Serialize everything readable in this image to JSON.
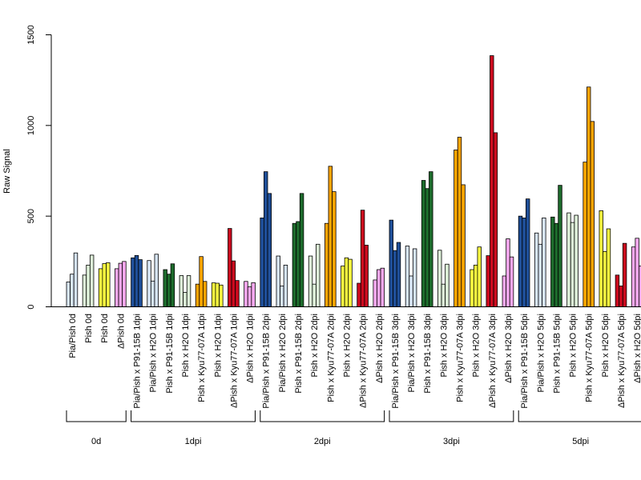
{
  "chart_data": {
    "type": "bar",
    "title": "",
    "xlabel": "",
    "ylabel": "Raw Signal",
    "ylim": [
      0,
      1500
    ],
    "yticks": [
      0,
      500,
      1000,
      1500
    ],
    "grid": false,
    "legend": "none",
    "categories": [
      "Pia/Pish 0d",
      "Pish 0d",
      "Pish 0d",
      "ΔPish 0d",
      "Pia/Pish x P91-15B 1dpi",
      "Pia/Pish x H2O 1dpi",
      "Pish x P91-15B 1dpi",
      "Pish x H2O 1dpi",
      "Pish x Kyu77-07A 1dpi",
      "Pish x H2O 1dpi",
      "ΔPish x Kyu77-07A 1dpi",
      "ΔPish x H2O 1dpi",
      "Pia/Pish x P91-15B 2dpi",
      "Pia/Pish x H2O 2dpi",
      "Pish x P91-15B 2dpi",
      "Pish x H2O 2dpi",
      "Pish x Kyu77-07A 2dpi",
      "Pish x H2O 2dpi",
      "ΔPish x Kyu77-07A 2dpi",
      "ΔPish x H2O 2dpi",
      "Pia/Pish x P91-15B 3dpi",
      "Pia/Pish x H2O 3dpi",
      "Pish x P91-15B 3dpi",
      "Pish x H2O 3dpi",
      "Pish x Kyu77-07A 3dpi",
      "Pish x H2O 3dpi",
      "ΔPish x Kyu77-07A 3dpi",
      "ΔPish x H2O 3dpi",
      "Pia/Pish x P91-15B 5dpi",
      "Pia/Pish x H2O 5dpi",
      "Pish x P91-15B 5dpi",
      "Pish x H2O 5dpi",
      "Pish x Kyu77-07A 5dpi",
      "Pish x H2O 5dpi",
      "ΔPish x Kyu77-07A 5dpi",
      "ΔPish x H2O 5dpi"
    ],
    "category_colors": [
      "#d6e4f3",
      "#ddf0d8",
      "#ffff40",
      "#f8a8f0",
      "#1f4f99",
      "#d6e4f3",
      "#1d6b2c",
      "#ddf0d8",
      "#ffa500",
      "#ffff40",
      "#cc0a1e",
      "#f8a8f0",
      "#1f4f99",
      "#d6e4f3",
      "#1d6b2c",
      "#ddf0d8",
      "#ffa500",
      "#ffff40",
      "#cc0a1e",
      "#f8a8f0",
      "#1f4f99",
      "#d6e4f3",
      "#1d6b2c",
      "#ddf0d8",
      "#ffa500",
      "#ffff40",
      "#cc0a1e",
      "#f8a8f0",
      "#1f4f99",
      "#d6e4f3",
      "#1d6b2c",
      "#ddf0d8",
      "#ffa500",
      "#ffff40",
      "#cc0a1e",
      "#f8a8f0"
    ],
    "values": [
      [
        137,
        180,
        297
      ],
      [
        175,
        230,
        285
      ],
      [
        210,
        238,
        243
      ],
      [
        210,
        240,
        250
      ],
      [
        270,
        283,
        260
      ],
      [
        255,
        142,
        290
      ],
      [
        205,
        180,
        237
      ],
      [
        172,
        80,
        172
      ],
      [
        125,
        277,
        140
      ],
      [
        132,
        130,
        120
      ],
      [
        432,
        253,
        145
      ],
      [
        140,
        110,
        133
      ],
      [
        490,
        745,
        625
      ],
      [
        280,
        115,
        230
      ],
      [
        460,
        470,
        625
      ],
      [
        280,
        125,
        345
      ],
      [
        460,
        775,
        635
      ],
      [
        225,
        270,
        262
      ],
      [
        130,
        533,
        340
      ],
      [
        148,
        205,
        213
      ],
      [
        478,
        310,
        355
      ],
      [
        335,
        170,
        320
      ],
      [
        697,
        652,
        745
      ],
      [
        312,
        125,
        235
      ],
      [
        865,
        935,
        673
      ],
      [
        205,
        230,
        330
      ],
      [
        282,
        1385,
        960
      ],
      [
        170,
        375,
        275
      ],
      [
        500,
        490,
        595
      ],
      [
        407,
        345,
        490
      ],
      [
        495,
        460,
        670
      ],
      [
        518,
        465,
        505
      ],
      [
        798,
        1212,
        1022
      ],
      [
        530,
        305,
        430
      ],
      [
        175,
        115,
        350
      ],
      [
        330,
        378,
        225
      ]
    ],
    "groups": [
      {
        "label": "0d",
        "start": 0,
        "end": 3
      },
      {
        "label": "1dpi",
        "start": 4,
        "end": 11
      },
      {
        "label": "2dpi",
        "start": 12,
        "end": 19
      },
      {
        "label": "3dpi",
        "start": 20,
        "end": 27
      },
      {
        "label": "5dpi",
        "start": 28,
        "end": 35
      }
    ]
  }
}
